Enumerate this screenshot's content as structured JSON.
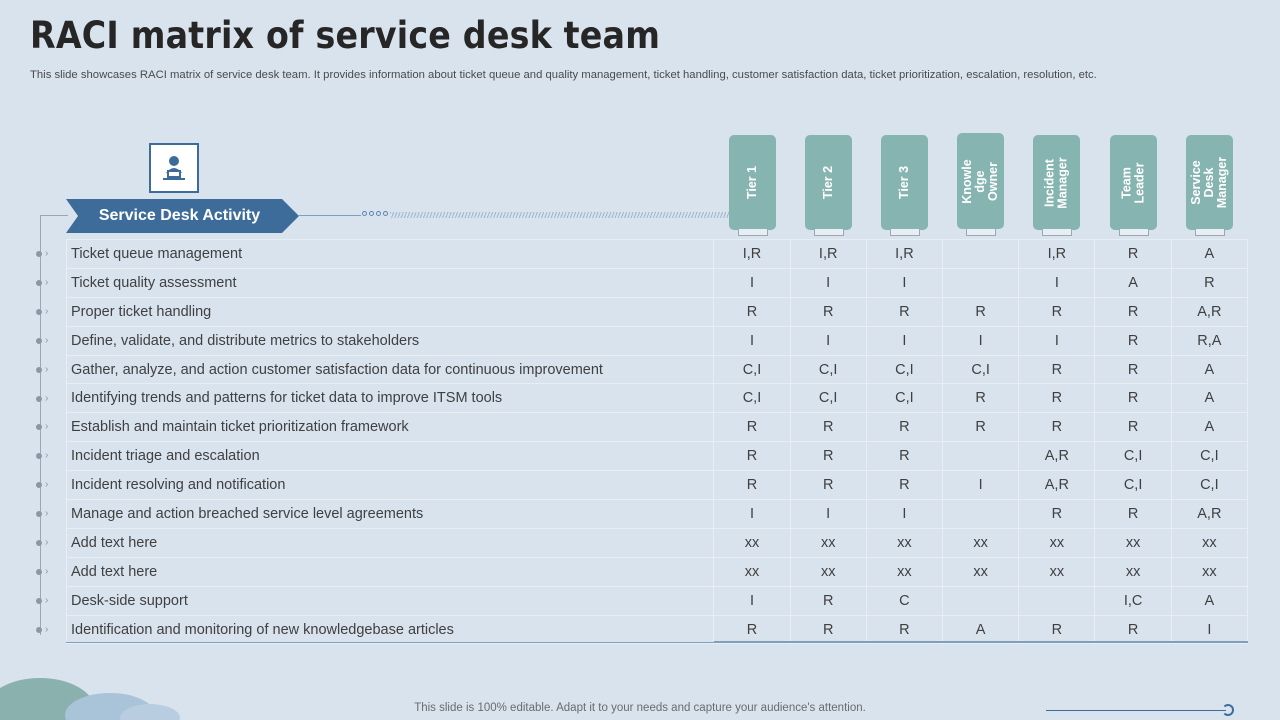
{
  "title": "RACI matrix of service desk team",
  "subtitle": "This slide showcases RACI matrix of service desk team. It provides information about ticket queue and quality management, ticket handling, customer satisfaction data, ticket prioritization, escalation, resolution, etc.",
  "activity_header": "Service Desk Activity",
  "icon": "service-desk-agent-icon",
  "columns": [
    "Tier 1",
    "Tier 2",
    "Tier 3",
    "Knowle dge Owner",
    "Incident Manager",
    "Team Leader",
    "Service Desk Manager"
  ],
  "rows": [
    {
      "activity": "Ticket queue management",
      "values": [
        "I,R",
        "I,R",
        "I,R",
        "",
        "I,R",
        "R",
        "A"
      ]
    },
    {
      "activity": "Ticket quality assessment",
      "values": [
        "I",
        "I",
        "I",
        "",
        "I",
        "A",
        "R"
      ]
    },
    {
      "activity": "Proper ticket handling",
      "values": [
        "R",
        "R",
        "R",
        "R",
        "R",
        "R",
        "A,R"
      ]
    },
    {
      "activity": "Define, validate, and distribute metrics to stakeholders",
      "values": [
        "I",
        "I",
        "I",
        "I",
        "I",
        "R",
        "R,A"
      ]
    },
    {
      "activity": "Gather, analyze, and action customer satisfaction data for continuous improvement",
      "values": [
        "C,I",
        "C,I",
        "C,I",
        "C,I",
        "R",
        "R",
        "A"
      ]
    },
    {
      "activity": "Identifying trends and patterns for ticket data to improve ITSM tools",
      "values": [
        "C,I",
        "C,I",
        "C,I",
        "R",
        "R",
        "R",
        "A"
      ]
    },
    {
      "activity": "Establish and maintain ticket prioritization framework",
      "values": [
        "R",
        "R",
        "R",
        "R",
        "R",
        "R",
        "A"
      ]
    },
    {
      "activity": "Incident triage and escalation",
      "values": [
        "R",
        "R",
        "R",
        "",
        "A,R",
        "C,I",
        "C,I"
      ]
    },
    {
      "activity": "Incident resolving and notification",
      "values": [
        "R",
        "R",
        "R",
        "I",
        "A,R",
        "C,I",
        "C,I"
      ]
    },
    {
      "activity": "Manage and action breached service level agreements",
      "values": [
        "I",
        "I",
        "I",
        "",
        "R",
        "R",
        "A,R"
      ]
    },
    {
      "activity": "Add text here",
      "values": [
        "xx",
        "xx",
        "xx",
        "xx",
        "xx",
        "xx",
        "xx"
      ]
    },
    {
      "activity": "Add text here",
      "values": [
        "xx",
        "xx",
        "xx",
        "xx",
        "xx",
        "xx",
        "xx"
      ]
    },
    {
      "activity": "Desk-side support",
      "values": [
        "I",
        "R",
        "C",
        "",
        "",
        "I,C",
        "A"
      ]
    },
    {
      "activity": "Identification and monitoring of new knowledgebase articles",
      "values": [
        "R",
        "R",
        "R",
        "A",
        "R",
        "R",
        "I"
      ]
    }
  ],
  "footer": "This slide is 100% editable. Adapt it to your needs and capture your audience's attention.",
  "colors": {
    "background": "#d9e3ee",
    "header_teal": "#86b4b0",
    "accent_blue": "#3e6c9a"
  }
}
